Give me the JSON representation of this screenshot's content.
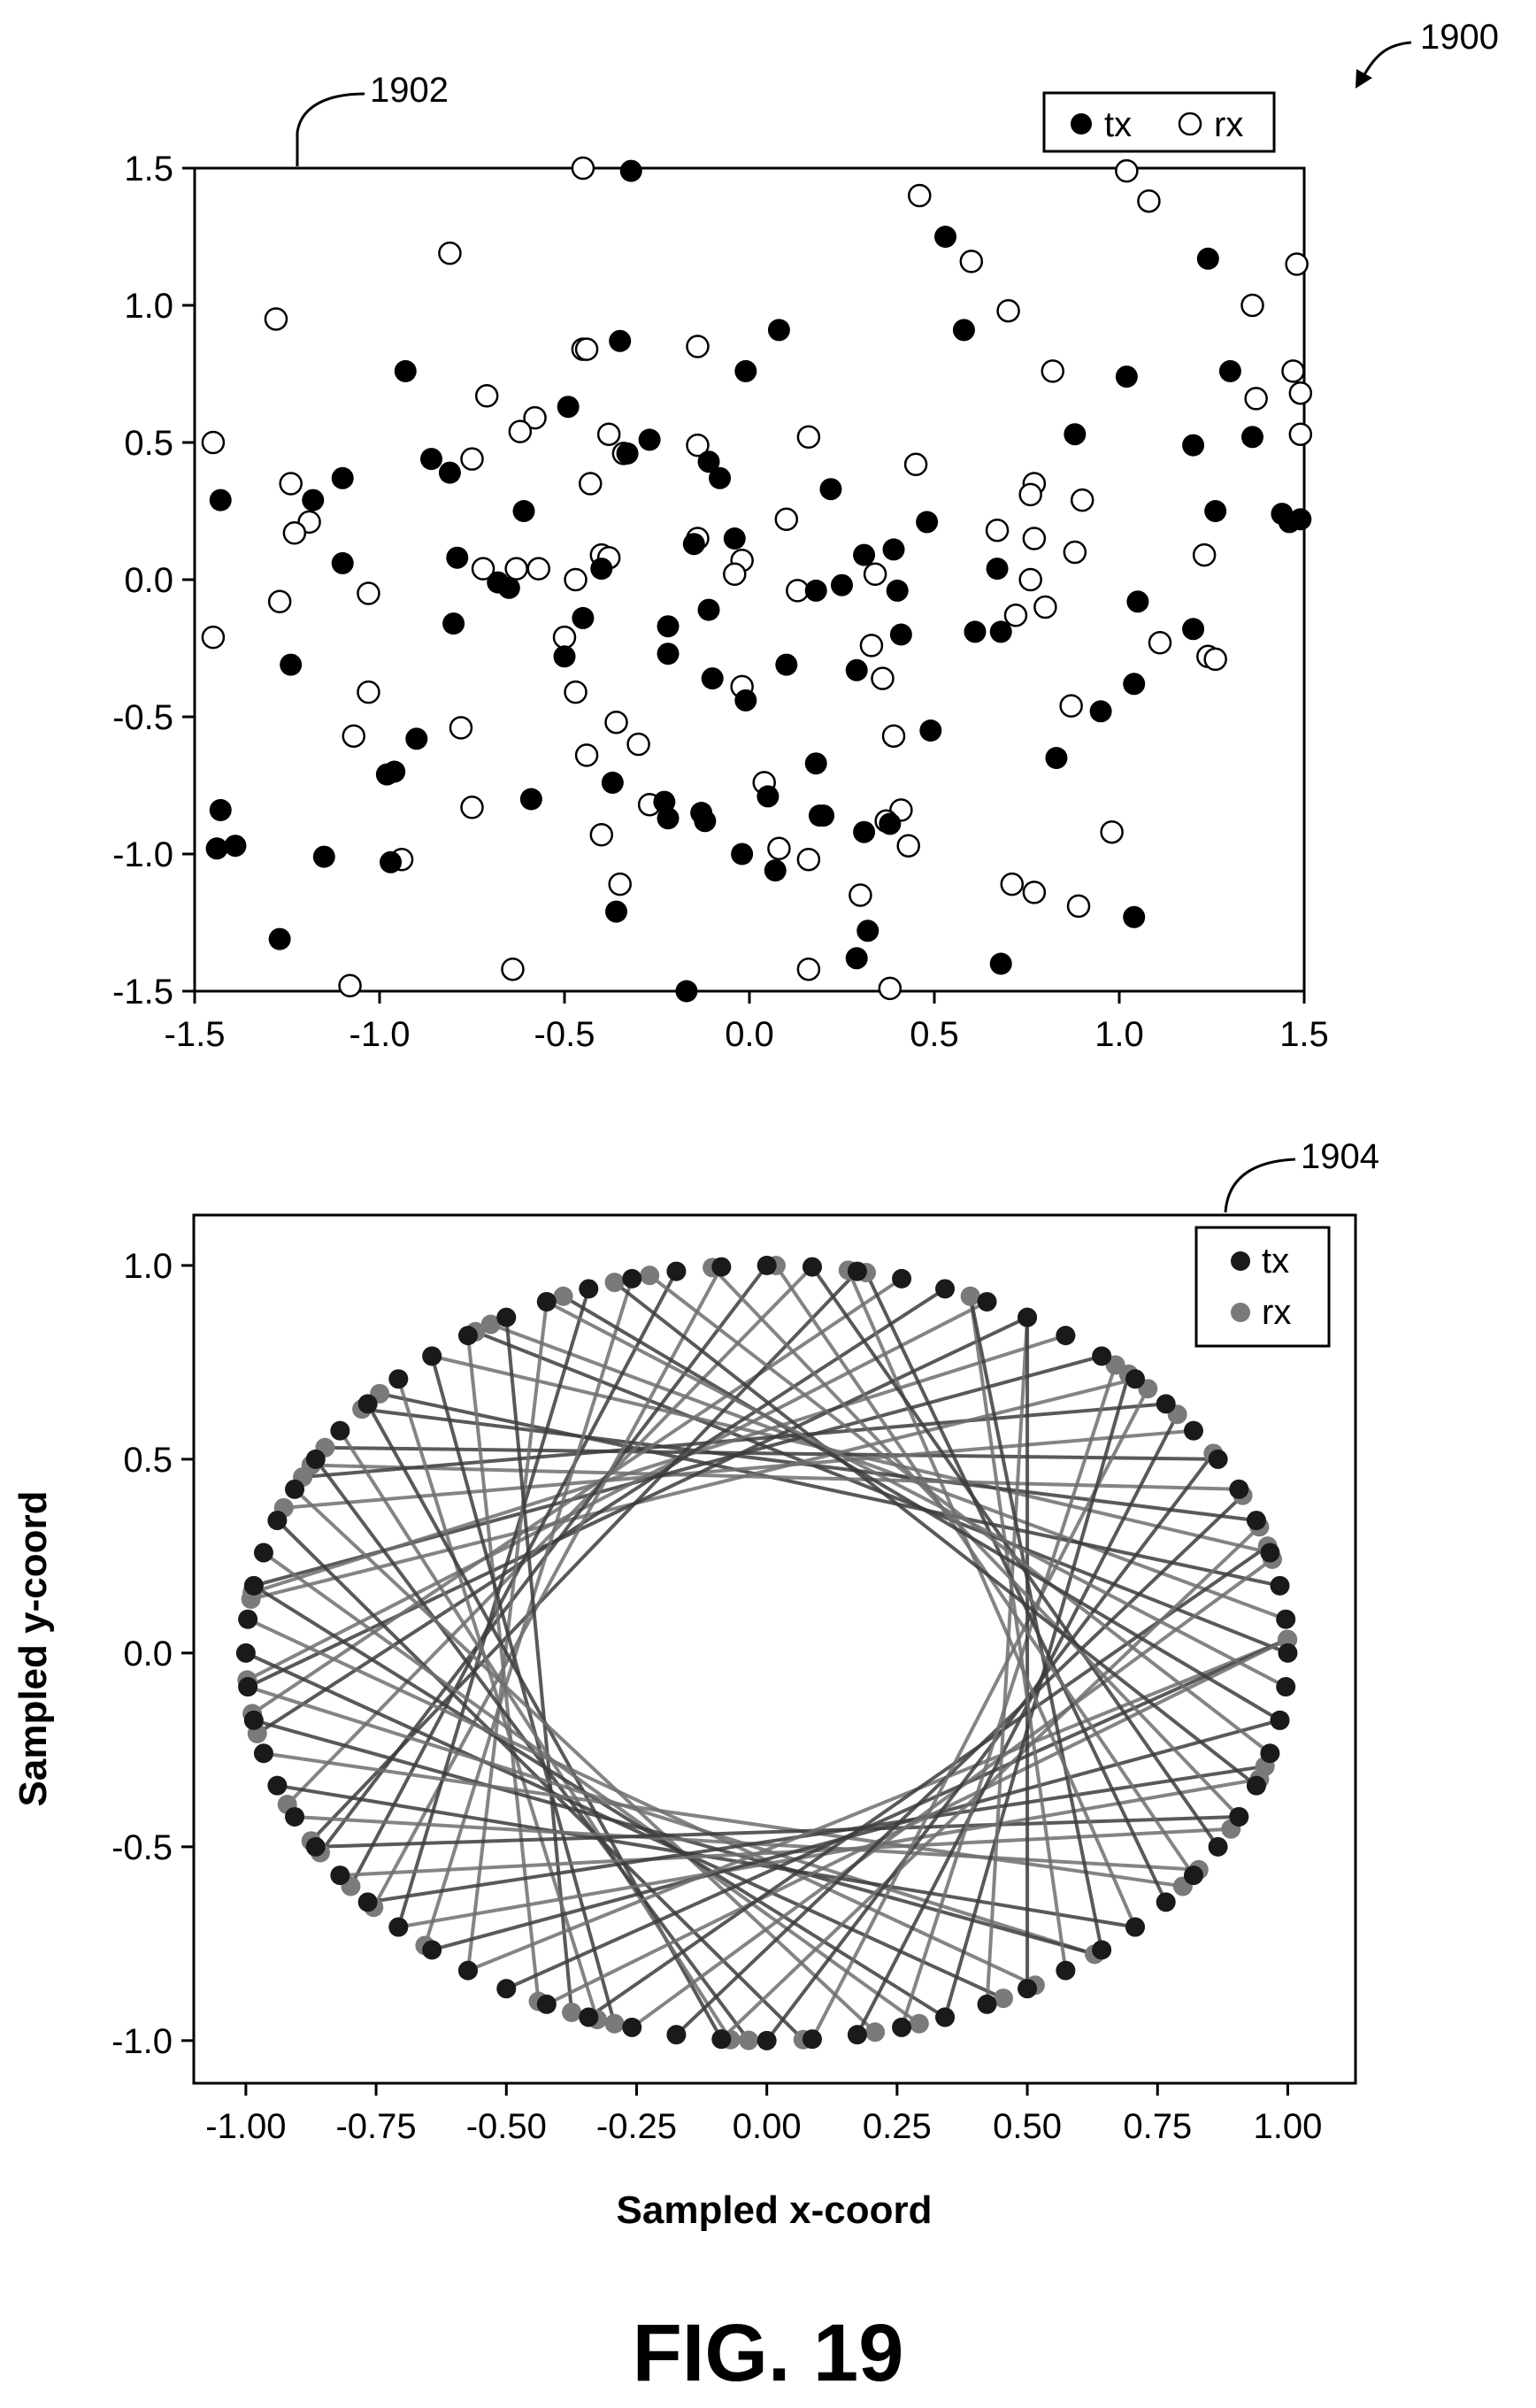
{
  "figure": {
    "number_label": "1900",
    "caption": "FIG. 19"
  },
  "chart_data": [
    {
      "type": "scatter",
      "ref_label": "1902",
      "title": "",
      "xlabel": "",
      "ylabel": "",
      "xlim": [
        -1.5,
        1.5
      ],
      "ylim": [
        -1.5,
        1.5
      ],
      "x_ticks": [
        "-1.5",
        "-1.0",
        "-0.5",
        "0.0",
        "0.5",
        "1.0",
        "1.5"
      ],
      "y_ticks": [
        "1.5",
        "1.0",
        "0.5",
        "0.0",
        "-0.5",
        "-1.0",
        "-1.5"
      ],
      "legend_position": "top-right",
      "grid": false,
      "series": [
        {
          "name": "tx",
          "marker": "filled-circle",
          "color": "#000000",
          "points": [
            [
              -0.32,
              1.49
            ],
            [
              0.53,
              1.25
            ],
            [
              1.24,
              1.17
            ],
            [
              -0.35,
              0.87
            ],
            [
              0.08,
              0.91
            ],
            [
              0.58,
              0.91
            ],
            [
              -0.93,
              0.76
            ],
            [
              -0.01,
              0.76
            ],
            [
              1.02,
              0.74
            ],
            [
              1.3,
              0.76
            ],
            [
              -0.49,
              0.63
            ],
            [
              0.88,
              0.53
            ],
            [
              1.36,
              0.52
            ],
            [
              1.2,
              0.49
            ],
            [
              -0.27,
              0.51
            ],
            [
              -0.86,
              0.44
            ],
            [
              -0.81,
              0.39
            ],
            [
              -0.33,
              0.46
            ],
            [
              -0.11,
              0.43
            ],
            [
              -0.08,
              0.37
            ],
            [
              -1.1,
              0.37
            ],
            [
              -1.43,
              0.29
            ],
            [
              -1.18,
              0.29
            ],
            [
              -0.61,
              0.25
            ],
            [
              0.22,
              0.33
            ],
            [
              1.26,
              0.25
            ],
            [
              1.44,
              0.24
            ],
            [
              1.46,
              0.21
            ],
            [
              1.49,
              0.22
            ],
            [
              0.48,
              0.21
            ],
            [
              -0.79,
              0.08
            ],
            [
              -1.1,
              0.06
            ],
            [
              -0.4,
              0.04
            ],
            [
              -0.15,
              0.13
            ],
            [
              -0.04,
              0.15
            ],
            [
              0.31,
              0.09
            ],
            [
              0.39,
              0.11
            ],
            [
              0.67,
              0.04
            ],
            [
              -0.68,
              -0.01
            ],
            [
              -0.65,
              -0.03
            ],
            [
              0.25,
              -0.02
            ],
            [
              0.18,
              -0.04
            ],
            [
              0.4,
              -0.04
            ],
            [
              1.05,
              -0.08
            ],
            [
              -0.8,
              -0.16
            ],
            [
              -0.45,
              -0.14
            ],
            [
              -0.22,
              -0.17
            ],
            [
              -0.11,
              -0.11
            ],
            [
              0.61,
              -0.19
            ],
            [
              0.68,
              -0.19
            ],
            [
              1.2,
              -0.18
            ],
            [
              0.41,
              -0.2
            ],
            [
              -1.24,
              -0.31
            ],
            [
              -0.5,
              -0.28
            ],
            [
              -0.22,
              -0.27
            ],
            [
              -0.1,
              -0.36
            ],
            [
              0.1,
              -0.31
            ],
            [
              0.29,
              -0.33
            ],
            [
              1.04,
              -0.38
            ],
            [
              -0.01,
              -0.44
            ],
            [
              0.95,
              -0.48
            ],
            [
              0.49,
              -0.55
            ],
            [
              -0.9,
              -0.58
            ],
            [
              0.83,
              -0.65
            ],
            [
              0.18,
              -0.67
            ],
            [
              -0.98,
              -0.71
            ],
            [
              -0.96,
              -0.7
            ],
            [
              -0.37,
              -0.74
            ],
            [
              -0.59,
              -0.8
            ],
            [
              -0.23,
              -0.81
            ],
            [
              -0.22,
              -0.87
            ],
            [
              -0.13,
              -0.85
            ],
            [
              -0.12,
              -0.88
            ],
            [
              0.05,
              -0.79
            ],
            [
              0.2,
              -0.86
            ],
            [
              0.19,
              -0.86
            ],
            [
              0.31,
              -0.92
            ],
            [
              0.38,
              -0.89
            ],
            [
              -1.43,
              -0.84
            ],
            [
              -1.44,
              -0.98
            ],
            [
              -1.39,
              -0.97
            ],
            [
              -1.15,
              -1.01
            ],
            [
              -0.97,
              -1.03
            ],
            [
              -0.02,
              -1.0
            ],
            [
              0.07,
              -1.06
            ],
            [
              -0.36,
              -1.21
            ],
            [
              1.04,
              -1.23
            ],
            [
              0.32,
              -1.28
            ],
            [
              -1.27,
              -1.31
            ],
            [
              0.29,
              -1.38
            ],
            [
              0.68,
              -1.4
            ],
            [
              -0.17,
              -1.5
            ]
          ]
        },
        {
          "name": "rx",
          "marker": "hollow-circle",
          "color": "#000000",
          "points": [
            [
              -0.45,
              1.5
            ],
            [
              0.46,
              1.4
            ],
            [
              1.02,
              1.49
            ],
            [
              1.08,
              1.38
            ],
            [
              -0.81,
              1.19
            ],
            [
              0.6,
              1.16
            ],
            [
              1.48,
              1.15
            ],
            [
              -1.28,
              0.95
            ],
            [
              0.7,
              0.98
            ],
            [
              1.36,
              1.0
            ],
            [
              -0.45,
              0.84
            ],
            [
              -0.44,
              0.84
            ],
            [
              -0.14,
              0.85
            ],
            [
              0.82,
              0.76
            ],
            [
              1.47,
              0.76
            ],
            [
              -0.71,
              0.67
            ],
            [
              1.37,
              0.66
            ],
            [
              1.49,
              0.68
            ],
            [
              -0.58,
              0.59
            ],
            [
              -0.62,
              0.54
            ],
            [
              -0.38,
              0.53
            ],
            [
              0.16,
              0.52
            ],
            [
              1.49,
              0.53
            ],
            [
              -1.45,
              0.5
            ],
            [
              -0.75,
              0.44
            ],
            [
              -0.34,
              0.46
            ],
            [
              -0.14,
              0.49
            ],
            [
              0.45,
              0.42
            ],
            [
              0.77,
              0.35
            ],
            [
              -1.24,
              0.35
            ],
            [
              -0.43,
              0.35
            ],
            [
              0.76,
              0.31
            ],
            [
              0.9,
              0.29
            ],
            [
              -1.19,
              0.21
            ],
            [
              -1.23,
              0.17
            ],
            [
              0.1,
              0.22
            ],
            [
              0.67,
              0.18
            ],
            [
              0.77,
              0.15
            ],
            [
              -0.14,
              0.15
            ],
            [
              -0.4,
              0.09
            ],
            [
              -0.38,
              0.08
            ],
            [
              -0.02,
              0.07
            ],
            [
              0.88,
              0.1
            ],
            [
              1.23,
              0.09
            ],
            [
              -0.72,
              0.04
            ],
            [
              -0.63,
              0.04
            ],
            [
              -0.57,
              0.04
            ],
            [
              -0.47,
              0.0
            ],
            [
              -0.04,
              0.02
            ],
            [
              0.34,
              0.02
            ],
            [
              0.76,
              0.0
            ],
            [
              -1.27,
              -0.08
            ],
            [
              -1.03,
              -0.05
            ],
            [
              0.13,
              -0.04
            ],
            [
              0.8,
              -0.1
            ],
            [
              0.72,
              -0.13
            ],
            [
              1.11,
              -0.23
            ],
            [
              -1.45,
              -0.21
            ],
            [
              -0.5,
              -0.21
            ],
            [
              0.33,
              -0.24
            ],
            [
              1.24,
              -0.28
            ],
            [
              1.26,
              -0.29
            ],
            [
              0.36,
              -0.36
            ],
            [
              -1.03,
              -0.41
            ],
            [
              -0.47,
              -0.41
            ],
            [
              -0.02,
              -0.39
            ],
            [
              0.87,
              -0.46
            ],
            [
              -0.78,
              -0.54
            ],
            [
              -0.36,
              -0.52
            ],
            [
              0.39,
              -0.57
            ],
            [
              -1.07,
              -0.57
            ],
            [
              -0.3,
              -0.6
            ],
            [
              -0.44,
              -0.64
            ],
            [
              -0.75,
              -0.83
            ],
            [
              -0.27,
              -0.82
            ],
            [
              0.04,
              -0.74
            ],
            [
              0.41,
              -0.84
            ],
            [
              -0.4,
              -0.93
            ],
            [
              0.37,
              -0.88
            ],
            [
              0.43,
              -0.97
            ],
            [
              0.98,
              -0.92
            ],
            [
              -0.94,
              -1.02
            ],
            [
              0.08,
              -0.98
            ],
            [
              0.16,
              -1.02
            ],
            [
              -0.35,
              -1.11
            ],
            [
              0.71,
              -1.11
            ],
            [
              0.77,
              -1.14
            ],
            [
              0.3,
              -1.15
            ],
            [
              0.89,
              -1.19
            ],
            [
              -0.64,
              -1.42
            ],
            [
              0.16,
              -1.42
            ],
            [
              -1.08,
              -1.48
            ],
            [
              0.38,
              -1.49
            ]
          ]
        }
      ]
    },
    {
      "type": "line",
      "ref_label": "1904",
      "title": "",
      "xlabel": "Sampled x-coord",
      "ylabel": "Sampled y-coord",
      "xlim": [
        -1.1,
        1.13
      ],
      "ylim": [
        -1.11,
        1.13
      ],
      "x_ticks": [
        "-1.00",
        "-0.75",
        "-0.50",
        "-0.25",
        "0.00",
        "0.25",
        "0.50",
        "0.75",
        "1.00"
      ],
      "y_ticks": [
        "1.0",
        "0.5",
        "0.0",
        "-0.5",
        "-1.0"
      ],
      "legend_position": "top-right",
      "grid": false,
      "description_of_data": "72 tx/rx point pairs sampled on the unit circle; each pair joined by a chord spanning about 120 degrees",
      "series": [
        {
          "name": "tx",
          "marker": "filled-circle",
          "color": "#1a1a1a",
          "angles_deg": [
            0,
            5,
            10,
            15,
            20,
            25,
            30,
            35,
            40,
            45,
            50,
            55,
            60,
            65,
            70,
            75,
            80,
            85,
            90,
            95,
            100,
            105,
            110,
            115,
            120,
            125,
            130,
            135,
            140,
            145,
            150,
            155,
            160,
            165,
            170,
            175,
            180,
            185,
            190,
            195,
            200,
            205,
            210,
            215,
            220,
            225,
            230,
            235,
            240,
            245,
            250,
            255,
            260,
            265,
            270,
            275,
            280,
            285,
            290,
            295,
            300,
            305,
            310,
            315,
            320,
            325,
            330,
            335,
            340,
            345,
            350,
            355
          ]
        },
        {
          "name": "rx",
          "marker": "filled-circle",
          "color": "#7a7a7a",
          "chord_offsets_deg": [
            124,
            117,
            128,
            115,
            121,
            126,
            118,
            123,
            113,
            127,
            120,
            116,
            125,
            119,
            122,
            114,
            129,
            118,
            121,
            126,
            117,
            124,
            115,
            120,
            128,
            119,
            123,
            116,
            125,
            121,
            118,
            127,
            114,
            122,
            120,
            126,
            117,
            124,
            119,
            128,
            115,
            121,
            125,
            118,
            123,
            116,
            120,
            127,
            122,
            117,
            126,
            119,
            124,
            114,
            121,
            128,
            118,
            123,
            116,
            125,
            120,
            122,
            117,
            126,
            119,
            124,
            115,
            121,
            127,
            118,
            123,
            120
          ]
        }
      ]
    }
  ]
}
